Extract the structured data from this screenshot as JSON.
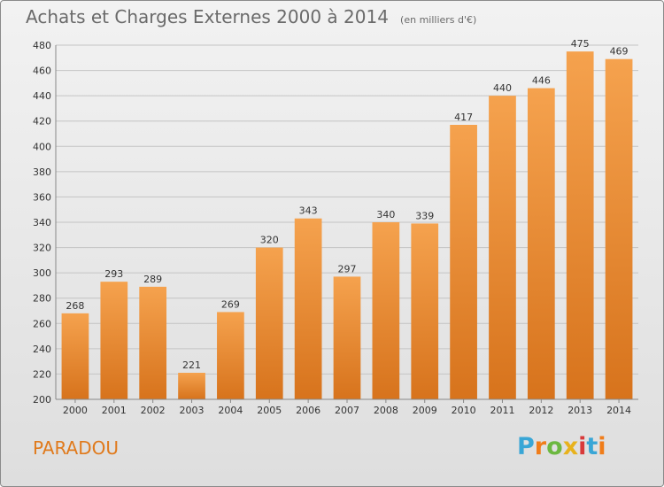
{
  "header": {
    "title": "Achats et Charges Externes 2000 à 2014",
    "subtitle": "(en milliers d'€)"
  },
  "footer": {
    "commune": "PARADOU",
    "brand": "Proxiti"
  },
  "colors": {
    "bar_light": "#f5a24e",
    "bar_dark": "#d7731c",
    "commune_text": "#e07a1c"
  },
  "chart_data": {
    "type": "bar",
    "categories": [
      "2000",
      "2001",
      "2002",
      "2003",
      "2004",
      "2005",
      "2006",
      "2007",
      "2008",
      "2009",
      "2010",
      "2011",
      "2012",
      "2013",
      "2014"
    ],
    "values": [
      268,
      293,
      289,
      221,
      269,
      320,
      343,
      297,
      340,
      339,
      417,
      440,
      446,
      475,
      469
    ],
    "ylim": [
      200,
      480
    ],
    "yticks": [
      200,
      220,
      240,
      260,
      280,
      300,
      320,
      340,
      360,
      380,
      400,
      420,
      440,
      460,
      480
    ],
    "grid": true,
    "data_labels": true,
    "legend": "none"
  }
}
